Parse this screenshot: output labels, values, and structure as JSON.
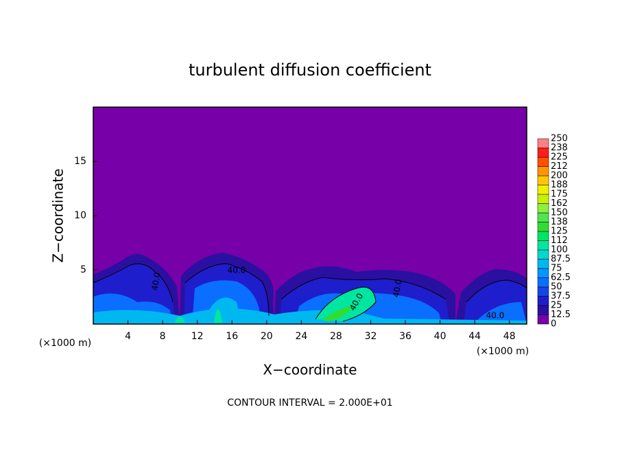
{
  "chart_data": {
    "type": "contour",
    "title": "turbulent diffusion coefficient",
    "x_label": "X−coordinate",
    "y_label": "Z−coordinate",
    "x_unit": "(×1000 m)",
    "x_unit_right": "(×1000 m)",
    "footnote": "CONTOUR INTERVAL = 2.000E+01",
    "contour_labels": [
      "40.0",
      "40.0",
      "40.0",
      "40.0",
      "40.0"
    ],
    "xlim": [
      0,
      50
    ],
    "ylim": [
      0,
      20
    ],
    "xticks": [
      4,
      8,
      12,
      16,
      20,
      24,
      28,
      32,
      36,
      40,
      44,
      48
    ],
    "yticks": [
      5,
      10,
      15
    ],
    "colorbar": {
      "levels": [
        0,
        12.5,
        25,
        37.5,
        50,
        62.5,
        75,
        87.5,
        100,
        {
          "value": 112.5,
          "label": "112"
        },
        125,
        {
          "value": 137.5,
          "label": "138"
        },
        150,
        {
          "value": 162.5,
          "label": "162"
        },
        175,
        {
          "value": 187.5,
          "label": "188"
        },
        200,
        {
          "value": 212.5,
          "label": "212"
        },
        225,
        {
          "value": 237.5,
          "label": "238"
        },
        250
      ],
      "colors": [
        "#7800a8",
        "#2a10a0",
        "#1e1ecc",
        "#1446e6",
        "#0a6eff",
        "#0096ff",
        "#00b8f0",
        "#00d8d0",
        "#00e6a0",
        "#00e664",
        "#32dc32",
        "#50e650",
        "#8cf03c",
        "#c8f000",
        "#f0f000",
        "#ffc800",
        "#ff9600",
        "#ff5000",
        "#ff1e1e",
        "#ff8080"
      ]
    }
  }
}
